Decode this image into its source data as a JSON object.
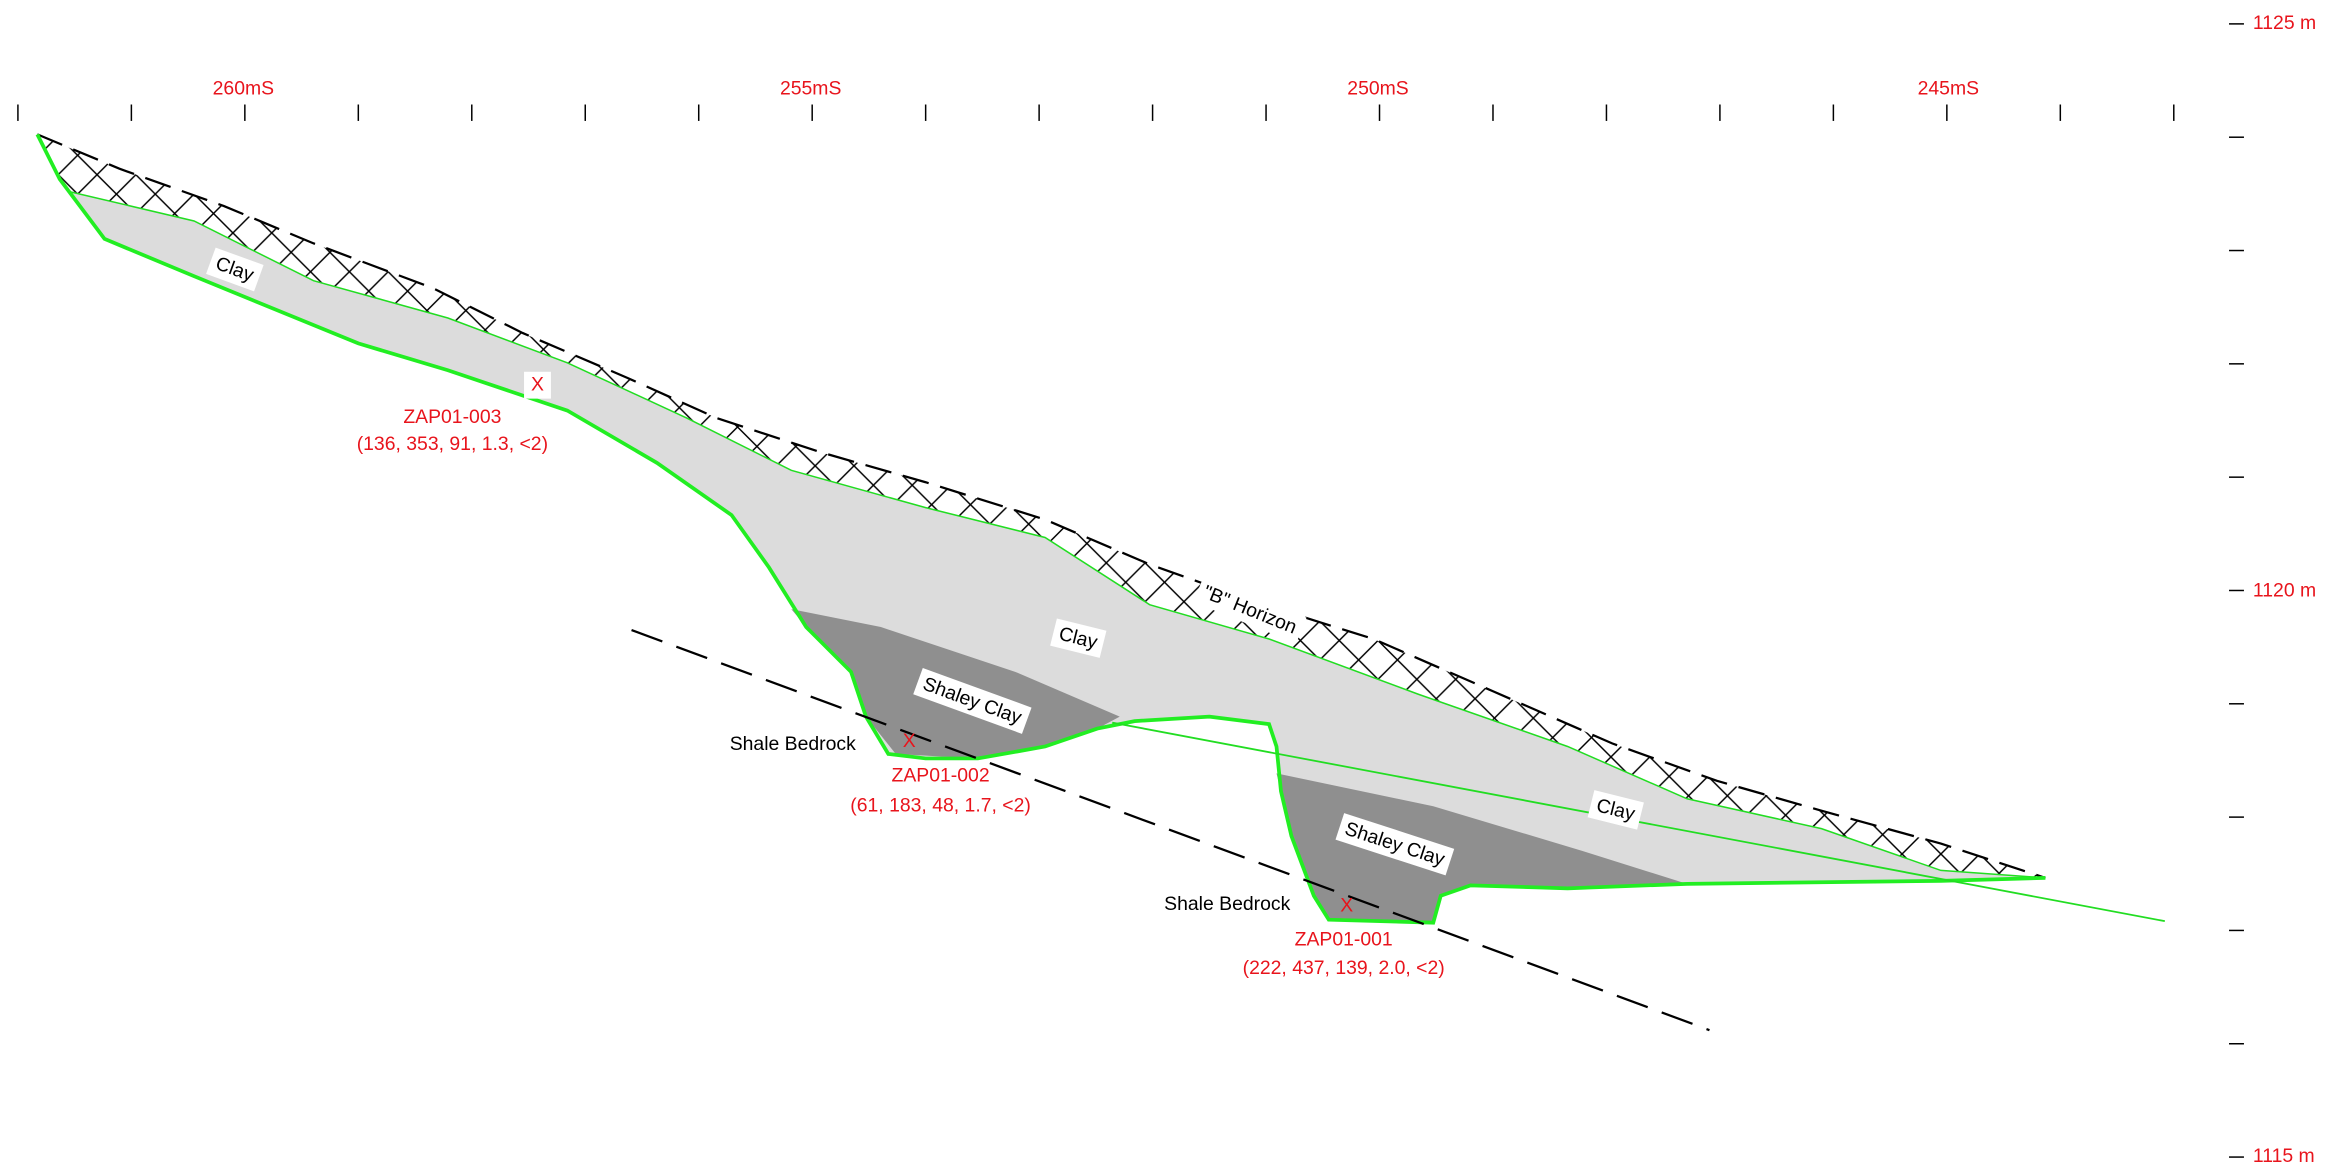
{
  "top_axis": {
    "labels": [
      "260mS",
      "255mS",
      "250mS",
      "245mS"
    ]
  },
  "right_axis": {
    "labels": [
      "1125 m",
      "1120 m",
      "1115 m"
    ]
  },
  "layers": [
    {
      "label": "Clay"
    },
    {
      "label": "Clay"
    },
    {
      "label": "Clay"
    },
    {
      "label": "Shaley Clay"
    },
    {
      "label": "Shaley Clay"
    },
    {
      "label": "\"B\" Horizon"
    }
  ],
  "bedrock_labels": [
    "Shale Bedrock",
    "Shale Bedrock"
  ],
  "samples": [
    {
      "marker": "X",
      "id": "ZAP01-003",
      "values": "(136, 353, 91, 1.3, <2)"
    },
    {
      "marker": "X",
      "id": "ZAP01-002",
      "values": "(61, 183, 48, 1.7, <2)"
    },
    {
      "marker": "X",
      "id": "ZAP01-001",
      "values": "(222, 437, 139, 2.0, <2)"
    }
  ]
}
